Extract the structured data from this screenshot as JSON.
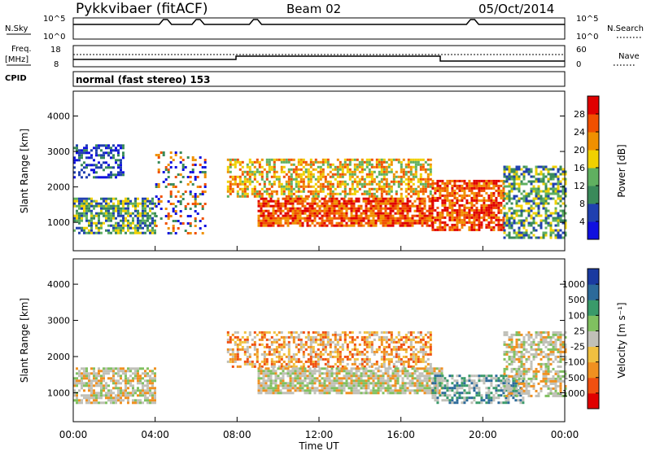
{
  "header": {
    "station": "Pykkvibaer (fitACF)",
    "beam": "Beam 02",
    "date": "05/Oct/2014"
  },
  "panels": {
    "nsky": {
      "label": "N.Sky",
      "right_label": "N.Search",
      "ticks_left": [
        "10^5",
        "10^0"
      ],
      "ticks_right": [
        "10^5",
        "10^0"
      ]
    },
    "freq": {
      "label_top": "Freq.",
      "label_bottom": "[MHz]",
      "right_label": "Nave",
      "ticks_left": [
        "18",
        "8"
      ],
      "ticks_right": [
        "60",
        "0"
      ]
    },
    "cpid": {
      "label": "CPID",
      "text": "normal (fast stereo) 153"
    }
  },
  "chart_data": [
    {
      "type": "heatmap",
      "name": "power",
      "ylabel": "Slant Range [km]",
      "yticks": [
        "1000",
        "2000",
        "3000",
        "4000"
      ],
      "ylim": [
        200,
        4700
      ],
      "xlabel": "Time UT",
      "xticks": [
        "00:00",
        "04:00",
        "08:00",
        "12:00",
        "16:00",
        "20:00",
        "00:00"
      ],
      "colorbar": {
        "label": "Power [dB]",
        "ticks": [
          "4",
          "8",
          "12",
          "16",
          "20",
          "24",
          "28"
        ],
        "colors": [
          "#1010e0",
          "#2040b0",
          "#3a8a5a",
          "#60b060",
          "#f0d000",
          "#f09000",
          "#f05000",
          "#e00000"
        ]
      },
      "bands": [
        {
          "t": [
            0.0,
            4.0
          ],
          "r": [
            700,
            1700
          ],
          "level": "green",
          "density": 0.7
        },
        {
          "t": [
            0.0,
            2.5
          ],
          "r": [
            2300,
            3200
          ],
          "level": "blue",
          "density": 0.5
        },
        {
          "t": [
            4.0,
            6.5
          ],
          "r": [
            700,
            3000
          ],
          "level": "sparse",
          "density": 0.25
        },
        {
          "t": [
            7.5,
            17.5
          ],
          "r": [
            1700,
            2800
          ],
          "level": "orange",
          "density": 0.6
        },
        {
          "t": [
            9.0,
            17.5
          ],
          "r": [
            900,
            1700
          ],
          "level": "red",
          "density": 0.8
        },
        {
          "t": [
            17.5,
            21.0
          ],
          "r": [
            800,
            2200
          ],
          "level": "red",
          "density": 0.7
        },
        {
          "t": [
            21.0,
            24.0
          ],
          "r": [
            600,
            2600
          ],
          "level": "green",
          "density": 0.6
        }
      ]
    },
    {
      "type": "heatmap",
      "name": "velocity",
      "ylabel": "Slant Range [km]",
      "yticks": [
        "1000",
        "2000",
        "3000",
        "4000"
      ],
      "ylim": [
        200,
        4700
      ],
      "xlabel": "Time UT",
      "xticks": [
        "00:00",
        "04:00",
        "08:00",
        "12:00",
        "16:00",
        "20:00",
        "00:00"
      ],
      "colorbar": {
        "label": "Velocity [m s⁻¹]",
        "ticks": [
          "1000",
          "500",
          "100",
          "25",
          "-25",
          "-100",
          "-500",
          "-1000"
        ],
        "colors": [
          "#1a3aa0",
          "#2c6a9a",
          "#3a9a6a",
          "#80c060",
          "#c0c0b8",
          "#f0c040",
          "#f09020",
          "#f05010",
          "#e00000"
        ]
      },
      "bands": [
        {
          "t": [
            0.0,
            4.0
          ],
          "r": [
            700,
            1700
          ],
          "level": "grey",
          "density": 0.7
        },
        {
          "t": [
            7.5,
            17.5
          ],
          "r": [
            1700,
            2700
          ],
          "level": "orange",
          "density": 0.55
        },
        {
          "t": [
            9.0,
            18.0
          ],
          "r": [
            1000,
            1700
          ],
          "level": "grey",
          "density": 0.8
        },
        {
          "t": [
            17.5,
            22.0
          ],
          "r": [
            700,
            1500
          ],
          "level": "green",
          "density": 0.6
        },
        {
          "t": [
            21.0,
            24.0
          ],
          "r": [
            900,
            2700
          ],
          "level": "grey",
          "density": 0.6
        }
      ]
    }
  ]
}
